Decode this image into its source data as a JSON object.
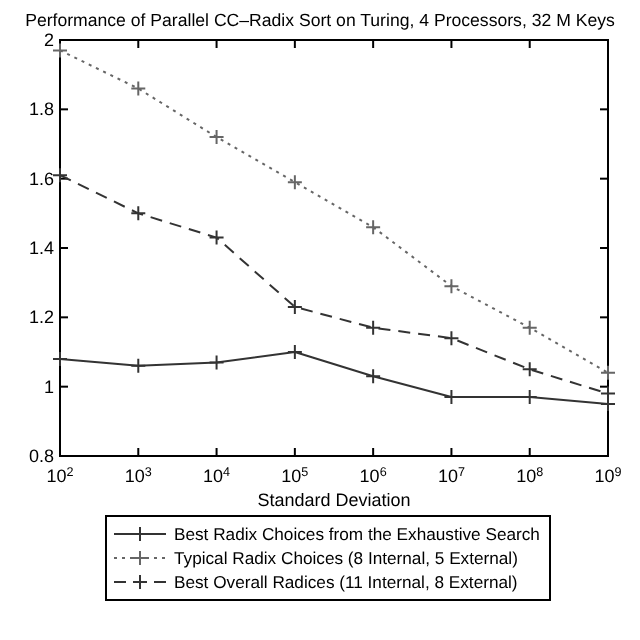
{
  "chart_data": {
    "type": "line",
    "title": "Performance of Parallel CC–Radix Sort on Turing, 4 Processors, 32 M Keys",
    "xlabel": "Standard Deviation",
    "log": "x",
    "x": [
      100,
      1000,
      10000,
      100000,
      1000000,
      10000000,
      100000000,
      1000000000
    ],
    "xlim": [
      100,
      1000000000
    ],
    "xticks": [
      {
        "value": 100,
        "label": "10$^{2}$"
      },
      {
        "value": 1000,
        "label": "10$^{3}$"
      },
      {
        "value": 10000,
        "label": "10$^{4}$"
      },
      {
        "value": 100000,
        "label": "10$^{5}$"
      },
      {
        "value": 1000000,
        "label": "10$^{6}$"
      },
      {
        "value": 10000000,
        "label": "10$^{7}$"
      },
      {
        "value": 100000000,
        "label": "10$^{8}$"
      },
      {
        "value": 1000000000,
        "label": "10$^{9}$"
      }
    ],
    "ylim": [
      0.8,
      2
    ],
    "yticks": [
      0.8,
      1,
      1.2,
      1.4,
      1.6,
      1.8,
      2
    ],
    "grid": false,
    "legend": "bottom",
    "marker": "cross",
    "series": [
      {
        "name": "Best Radix Choices from the Exhaustive Search",
        "color": "#333333",
        "line_style": "solid",
        "values": [
          1.08,
          1.06,
          1.07,
          1.1,
          1.03,
          0.97,
          0.97,
          0.95
        ]
      },
      {
        "name": "Typical Radix Choices (8 Internal, 5 External)",
        "color": "#666666",
        "line_style": "dotted",
        "values": [
          1.97,
          1.86,
          1.72,
          1.59,
          1.46,
          1.29,
          1.17,
          1.04
        ]
      },
      {
        "name": "Best Overall Radices (11 Internal, 8 External)",
        "color": "#333333",
        "line_style": "dashed",
        "values": [
          1.61,
          1.5,
          1.43,
          1.23,
          1.17,
          1.14,
          1.05,
          0.98
        ]
      }
    ]
  }
}
